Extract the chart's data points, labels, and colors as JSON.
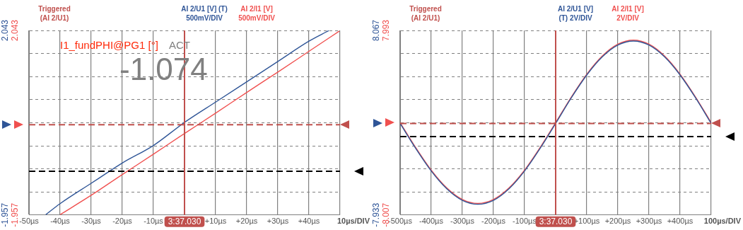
{
  "chart_data": [
    {
      "type": "line",
      "annotations": [
        "Triggered (AI 2/U1)",
        "10µs/DIV",
        "3:37.030",
        "I1_fundPHI@PG1 [°]",
        "ACT",
        "-1.074"
      ],
      "xlim": [
        -50,
        50
      ],
      "xticks": [
        {
          "value": -50,
          "label": "-50µs"
        },
        {
          "value": -40,
          "label": "-40µs"
        },
        {
          "value": -30,
          "label": "-30µs"
        },
        {
          "value": -20,
          "label": "-20µs"
        },
        {
          "value": -10,
          "label": "-10µs"
        },
        {
          "value": 0,
          "label": null
        },
        {
          "value": 10,
          "label": "+10µs"
        },
        {
          "value": 20,
          "label": "+20µs"
        },
        {
          "value": 30,
          "label": "+30µs"
        },
        {
          "value": 40,
          "label": "+40µs"
        },
        {
          "value": 50,
          "label": null
        }
      ],
      "ylim": [
        -1.957,
        2.043
      ],
      "yticks": [
        -1.957,
        {
          "value": -1.457,
          "label": null
        },
        {
          "value": -0.957,
          "label": null
        },
        {
          "value": -0.457,
          "label": null
        },
        {
          "value": 0.043,
          "label": null
        },
        {
          "value": 0.543,
          "label": null
        },
        {
          "value": 1.043,
          "label": null
        },
        {
          "value": 1.543,
          "label": null
        },
        2.043
      ],
      "y2lim": [
        -1.957,
        2.043
      ],
      "y2ticks": [
        -1.957,
        2.043
      ],
      "series": [
        {
          "name": "AI 2/U1 [V] (T) 500mV/DIV",
          "color": "#2f5597",
          "x": [
            -44.6,
            -40,
            -30,
            -20,
            -10,
            0,
            10,
            20,
            30,
            40,
            46.4
          ],
          "values": [
            -1.95,
            -1.71,
            -1.27,
            -0.83,
            -0.45,
            0.05,
            0.49,
            0.93,
            1.37,
            1.81,
            2.04
          ]
        },
        {
          "name": "AI 2/I1 [V] 500mV/DIV",
          "color": "#f0504f",
          "axis": "y2",
          "x": [
            -40,
            -30,
            -20,
            -10,
            0,
            10,
            20,
            30,
            40,
            49.8
          ],
          "values": [
            -1.95,
            -1.53,
            -1.08,
            -0.64,
            -0.19,
            0.25,
            0.7,
            1.14,
            1.59,
            2.03
          ]
        }
      ],
      "ref_lines": [
        {
          "axis": "y",
          "value": 0,
          "color": "#c0504d",
          "line_style": "dashed"
        },
        {
          "axis": "y",
          "value": -1.01,
          "color": "#000000",
          "line_style": "dashed"
        },
        {
          "axis": "x",
          "value": 0,
          "color": "#c0504d",
          "line_style": "solid"
        }
      ],
      "grid": true,
      "legend": "top",
      "marker": "none"
    },
    {
      "type": "line",
      "annotations": [
        "Triggered (AI 2/U1)",
        "100µs/DIV",
        "3:37.030"
      ],
      "xlim": [
        -500,
        500
      ],
      "xticks": [
        {
          "value": -500,
          "label": "-500µs"
        },
        {
          "value": -400,
          "label": "-400µs"
        },
        {
          "value": -300,
          "label": "-300µs"
        },
        {
          "value": -200,
          "label": "-200µs"
        },
        {
          "value": -100,
          "label": "-100µs"
        },
        {
          "value": 0,
          "label": null
        },
        {
          "value": 100,
          "label": "+100µs"
        },
        {
          "value": 200,
          "label": "+200µs"
        },
        {
          "value": 300,
          "label": "+300µs"
        },
        {
          "value": 400,
          "label": "+400µs"
        },
        {
          "value": 500,
          "label": null
        }
      ],
      "ylim": [
        -7.933,
        8.067
      ],
      "yticks": [
        -7.933,
        {
          "value": -5.933,
          "label": null
        },
        {
          "value": -3.933,
          "label": null
        },
        {
          "value": -1.933,
          "label": null
        },
        {
          "value": 0.067,
          "label": null
        },
        {
          "value": 2.067,
          "label": null
        },
        {
          "value": 4.067,
          "label": null
        },
        {
          "value": 6.067,
          "label": null
        },
        8.067
      ],
      "y2lim": [
        -8.007,
        7.993
      ],
      "y2ticks": [
        -8.007,
        7.993
      ],
      "series": [
        {
          "name": "AI 2/U1 [V] (T) 2V/DIV",
          "color": "#2f5597",
          "x": [
            -500,
            -450,
            -400,
            -350,
            -300,
            -250,
            -200,
            -150,
            -100,
            -50,
            0,
            50,
            100,
            150,
            200,
            250,
            300,
            350,
            400,
            450,
            500
          ],
          "values": [
            0,
            -2.16,
            -4.12,
            -5.66,
            -6.66,
            -7.0,
            -6.66,
            -5.66,
            -4.12,
            -2.16,
            0,
            2.21,
            4.2,
            5.78,
            6.8,
            7.15,
            6.8,
            5.78,
            4.2,
            2.21,
            0
          ]
        },
        {
          "name": "AI 2/I1 [V] 2V/DIV",
          "color": "#f0504f",
          "axis": "y2",
          "x": [
            -500,
            -450,
            -400,
            -350,
            -300,
            -250,
            -200,
            -150,
            -100,
            -50,
            0,
            50,
            100,
            150,
            200,
            250,
            300,
            350,
            400,
            450,
            500
          ],
          "values": [
            0,
            -2.16,
            -4.12,
            -5.66,
            -6.66,
            -7.0,
            -6.66,
            -5.66,
            -4.12,
            -2.16,
            0,
            2.21,
            4.2,
            5.78,
            6.8,
            7.15,
            6.8,
            5.78,
            4.2,
            2.21,
            0
          ]
        }
      ],
      "ref_lines": [
        {
          "axis": "y",
          "value": 0,
          "color": "#c0504d",
          "line_style": "dashed"
        },
        {
          "axis": "y",
          "value": -1.13,
          "color": "#000000",
          "line_style": "dashed"
        },
        {
          "axis": "x",
          "value": 0,
          "color": "#c0504d",
          "line_style": "solid"
        }
      ],
      "grid": true,
      "legend": "top",
      "marker": "none"
    }
  ]
}
